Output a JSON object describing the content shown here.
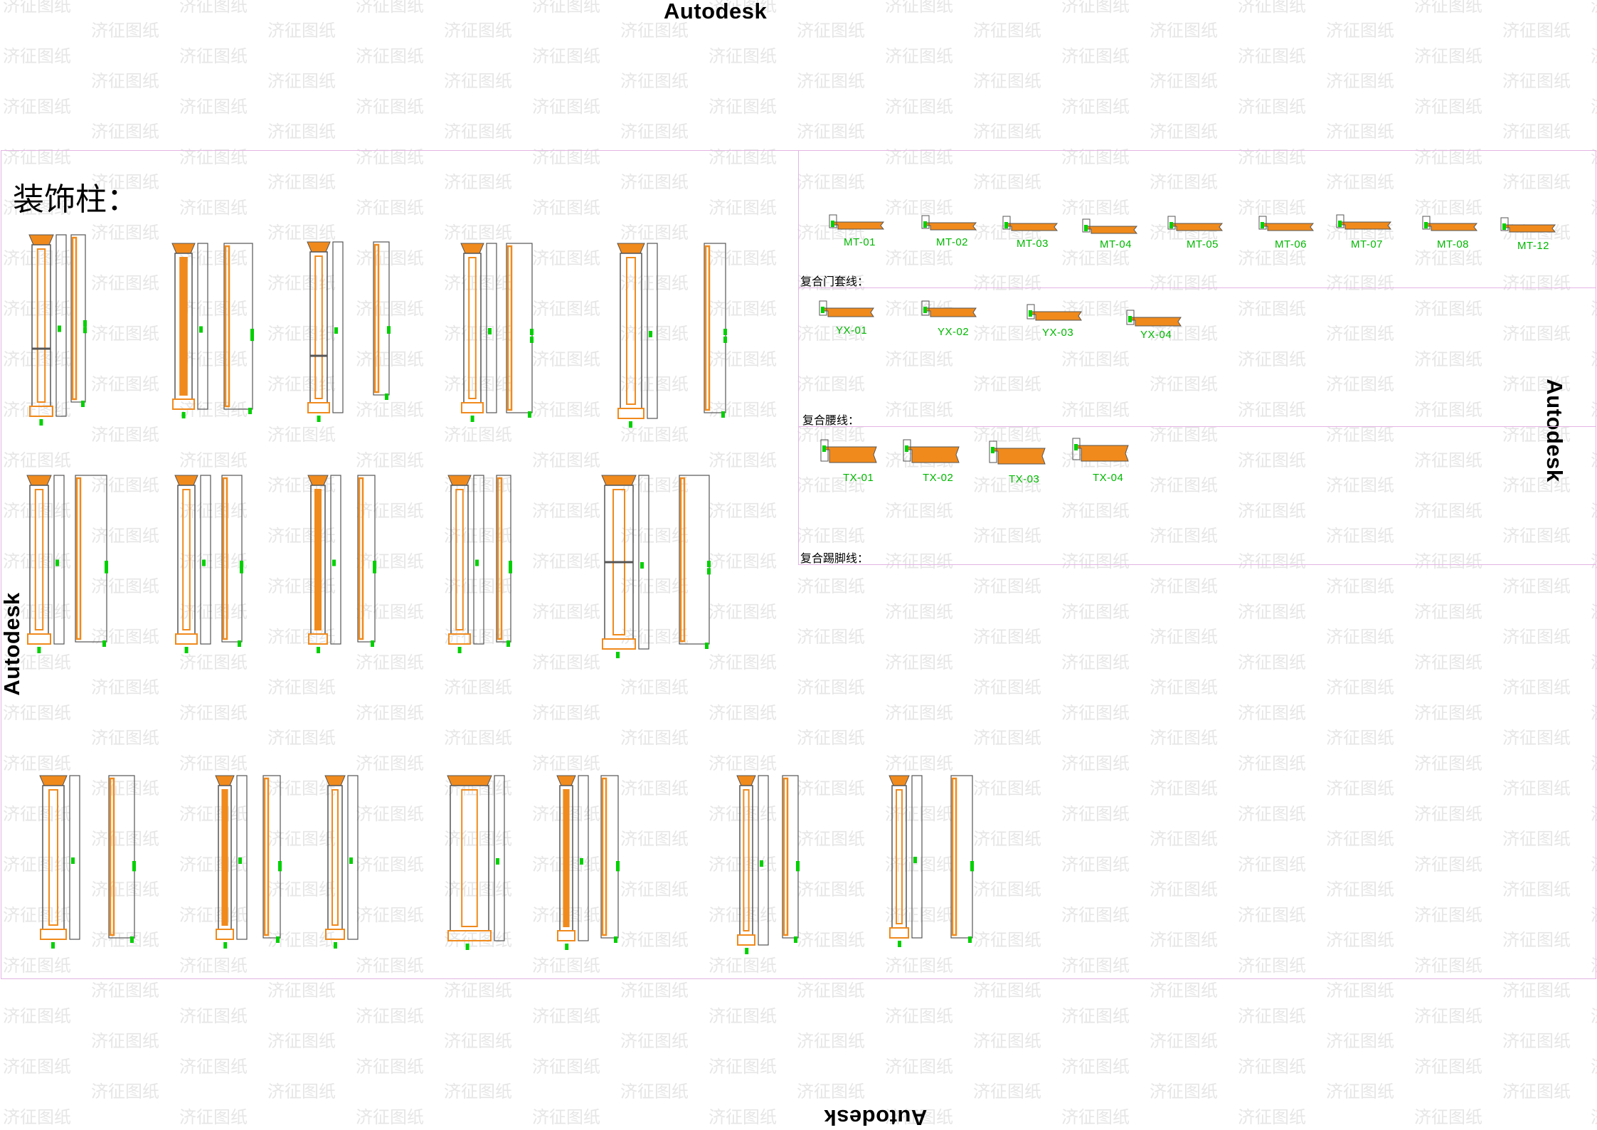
{
  "watermark": {
    "brand_stamp": "Autodesk",
    "tiled_mark": "济征图纸"
  },
  "sheet": {
    "title": "装饰柱："
  },
  "sections": {
    "door_casing": {
      "label": "复合门套线：",
      "items": [
        "MT-01",
        "MT-02",
        "MT-03",
        "MT-04",
        "MT-05",
        "MT-06",
        "MT-07",
        "MT-08",
        "MT-12"
      ]
    },
    "waist_line": {
      "label": "复合腰线：",
      "items": [
        "YX-01",
        "YX-02",
        "YX-03",
        "YX-04"
      ]
    },
    "skirting": {
      "label": "复合踢脚线：",
      "items": [
        "TX-01",
        "TX-02",
        "TX-03",
        "TX-04"
      ]
    }
  },
  "colors": {
    "profile_fill": "#f08a1c",
    "outline": "#555555",
    "dimension_marker": "#00d000",
    "frame": "#e3b4e3",
    "label": "#00b800"
  }
}
